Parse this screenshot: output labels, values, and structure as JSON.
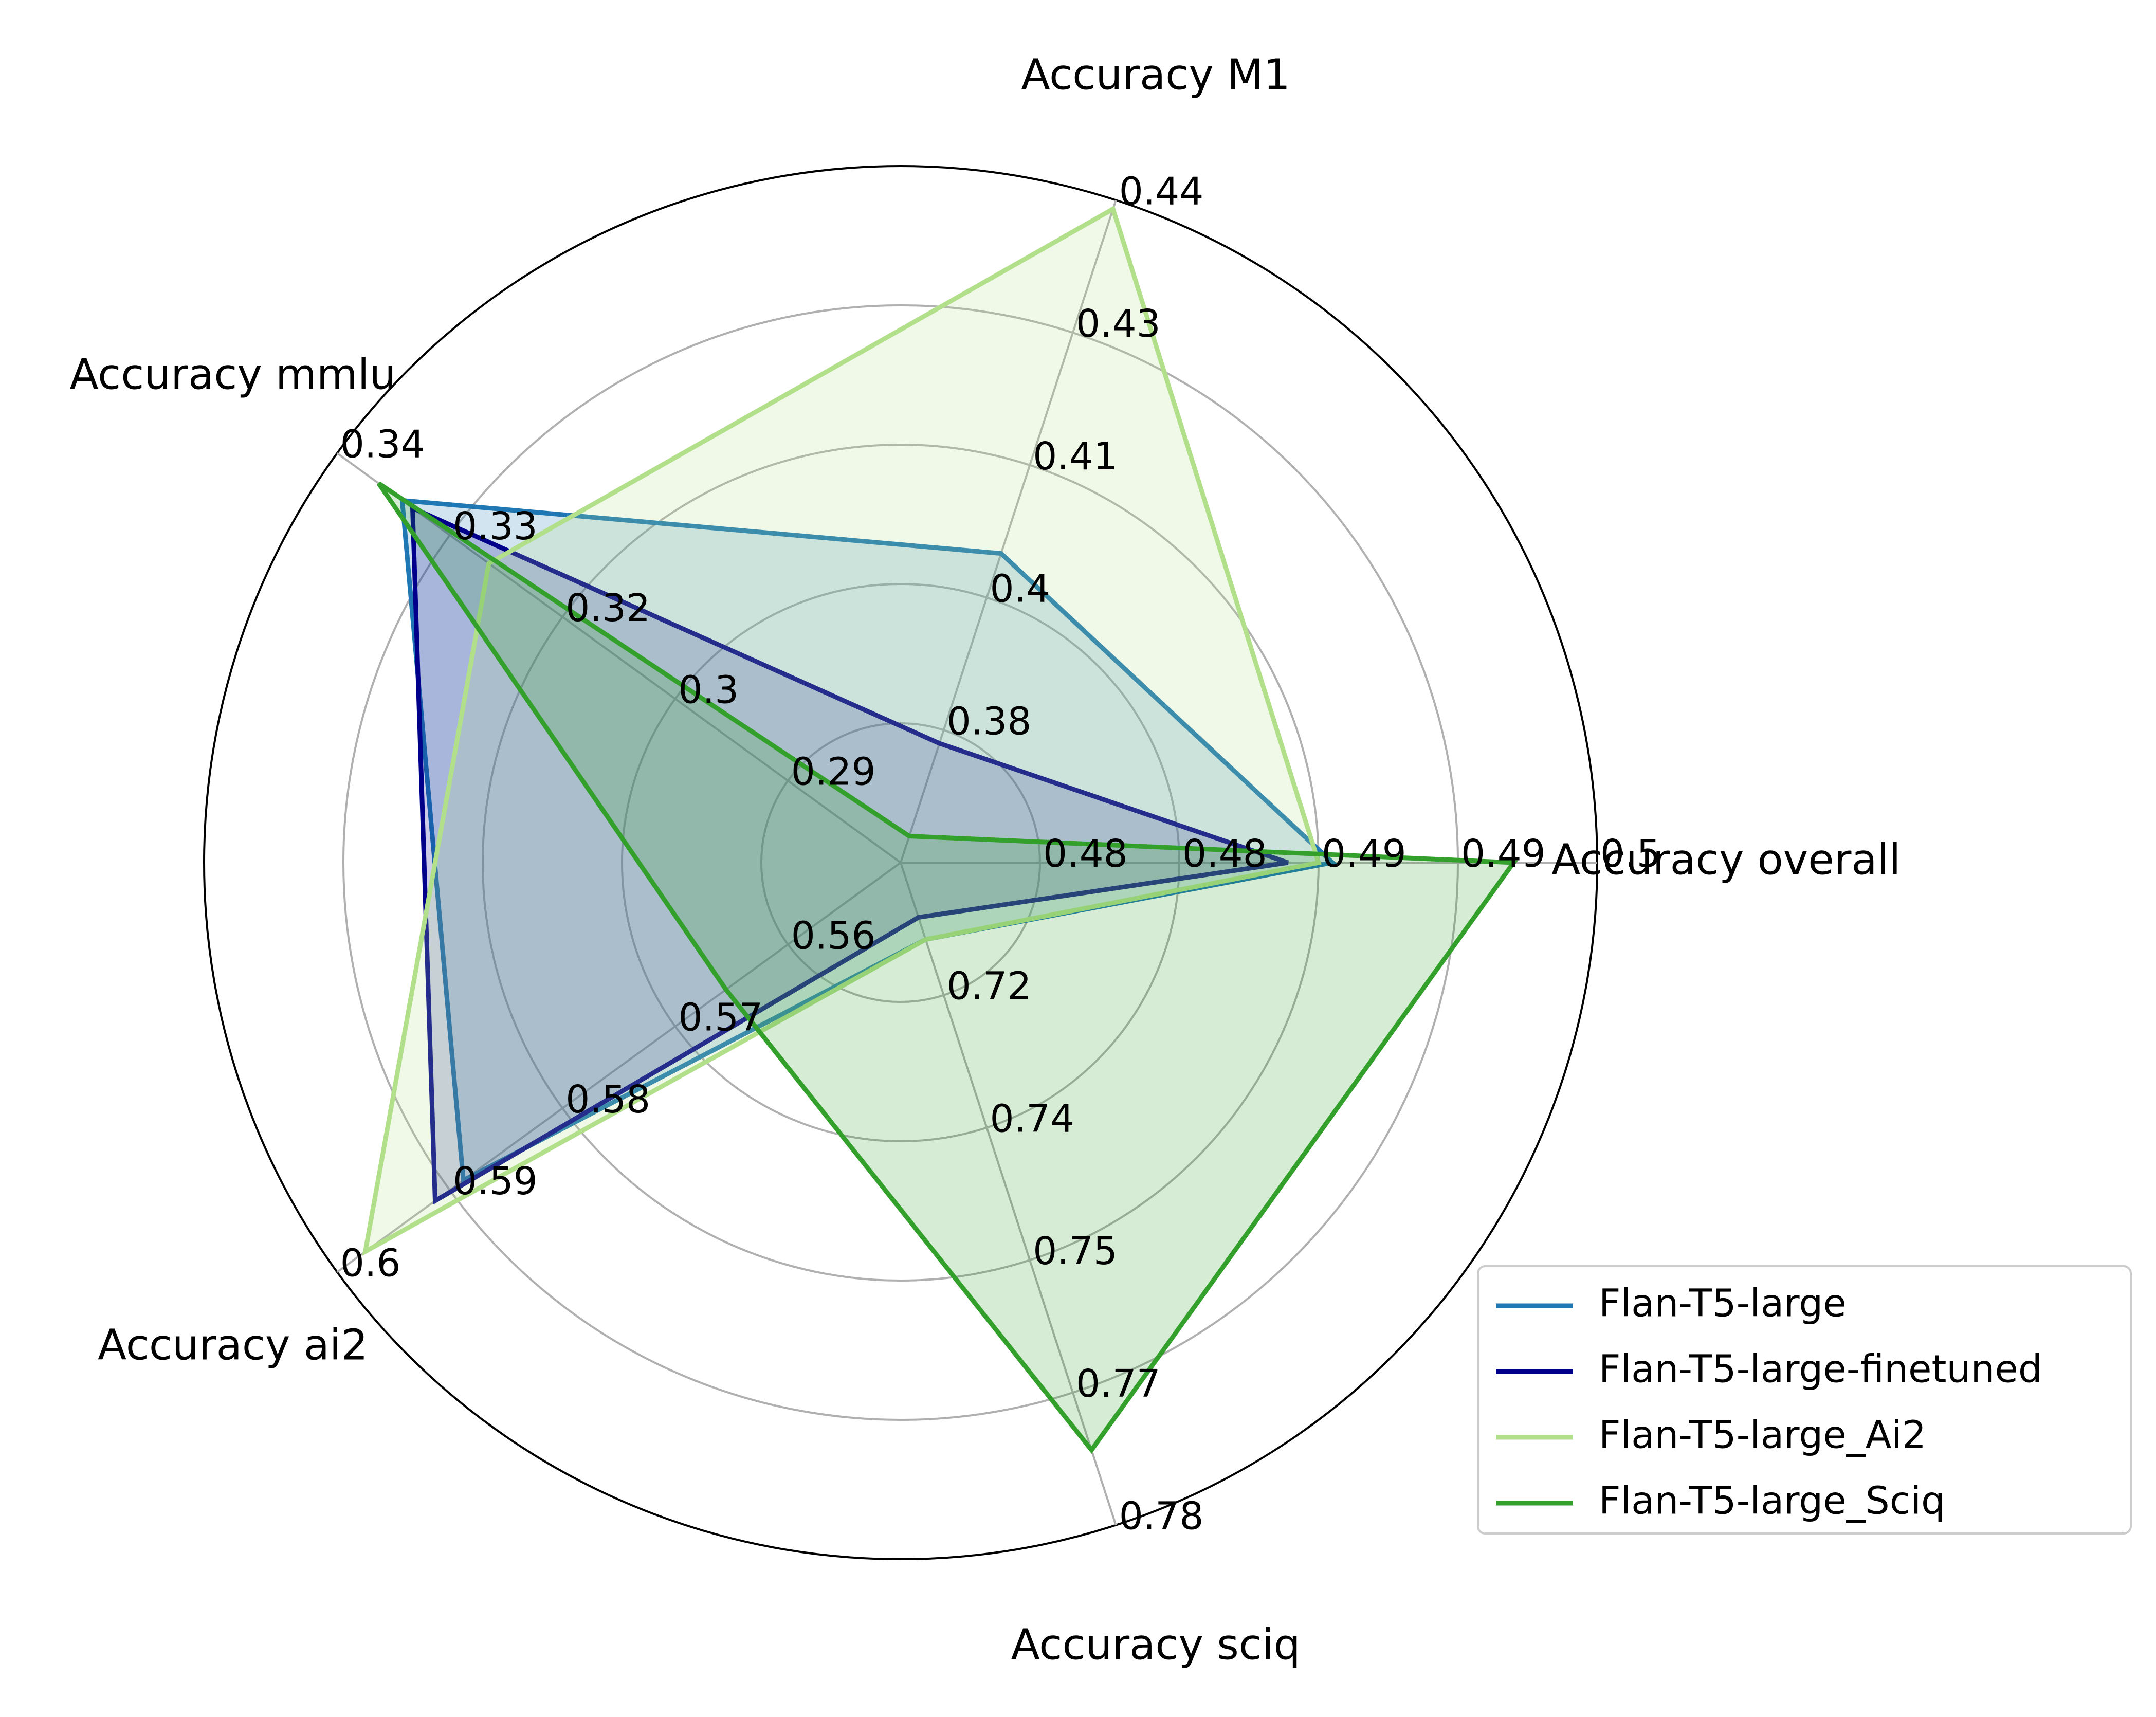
{
  "chart_data": {
    "type": "radar",
    "axes": [
      {
        "label": "Accuracy overall",
        "ticks": [
          "0.48",
          "0.48",
          "0.49",
          "0.49",
          "0.5"
        ],
        "range": [
          0.475,
          0.5
        ]
      },
      {
        "label": "Accuracy M1",
        "ticks": [
          "0.38",
          "0.4",
          "0.41",
          "0.43",
          "0.44"
        ],
        "range": [
          0.365,
          0.44
        ]
      },
      {
        "label": "Accuracy mmlu",
        "ticks": [
          "0.29",
          "0.3",
          "0.32",
          "0.33",
          "0.34"
        ],
        "range": [
          0.275,
          0.34
        ]
      },
      {
        "label": "Accuracy ai2",
        "ticks": [
          "0.56",
          "0.57",
          "0.58",
          "0.59",
          "0.6"
        ],
        "range": [
          0.55,
          0.6
        ]
      },
      {
        "label": "Accuracy sciq",
        "ticks": [
          "0.72",
          "0.74",
          "0.75",
          "0.77",
          "0.78"
        ],
        "range": [
          0.705,
          0.78
        ]
      }
    ],
    "series": [
      {
        "name": "Flan-T5-large",
        "color": "#1f77b4",
        "fill_opacity": 0.2,
        "values": [
          0.4905,
          0.4,
          0.3325,
          0.5888,
          0.7137
        ]
      },
      {
        "name": "Flan-T5-large-finetuned",
        "color": "#00008b",
        "fill_opacity": 0.2,
        "values": [
          0.4889,
          0.3785,
          0.3313,
          0.5913,
          0.7112
        ]
      },
      {
        "name": "Flan-T5-large_Ai2",
        "color": "#b2df8a",
        "fill_opacity": 0.2,
        "values": [
          0.49,
          0.439,
          0.3225,
          0.5975,
          0.7137
        ]
      },
      {
        "name": "Flan-T5-large_Sciq",
        "color": "#33a02c",
        "fill_opacity": 0.2,
        "values": [
          0.497,
          0.368,
          0.3352,
          0.5655,
          0.7715
        ]
      }
    ],
    "grid": true,
    "rings": 5,
    "legend_position": "lower-right"
  }
}
